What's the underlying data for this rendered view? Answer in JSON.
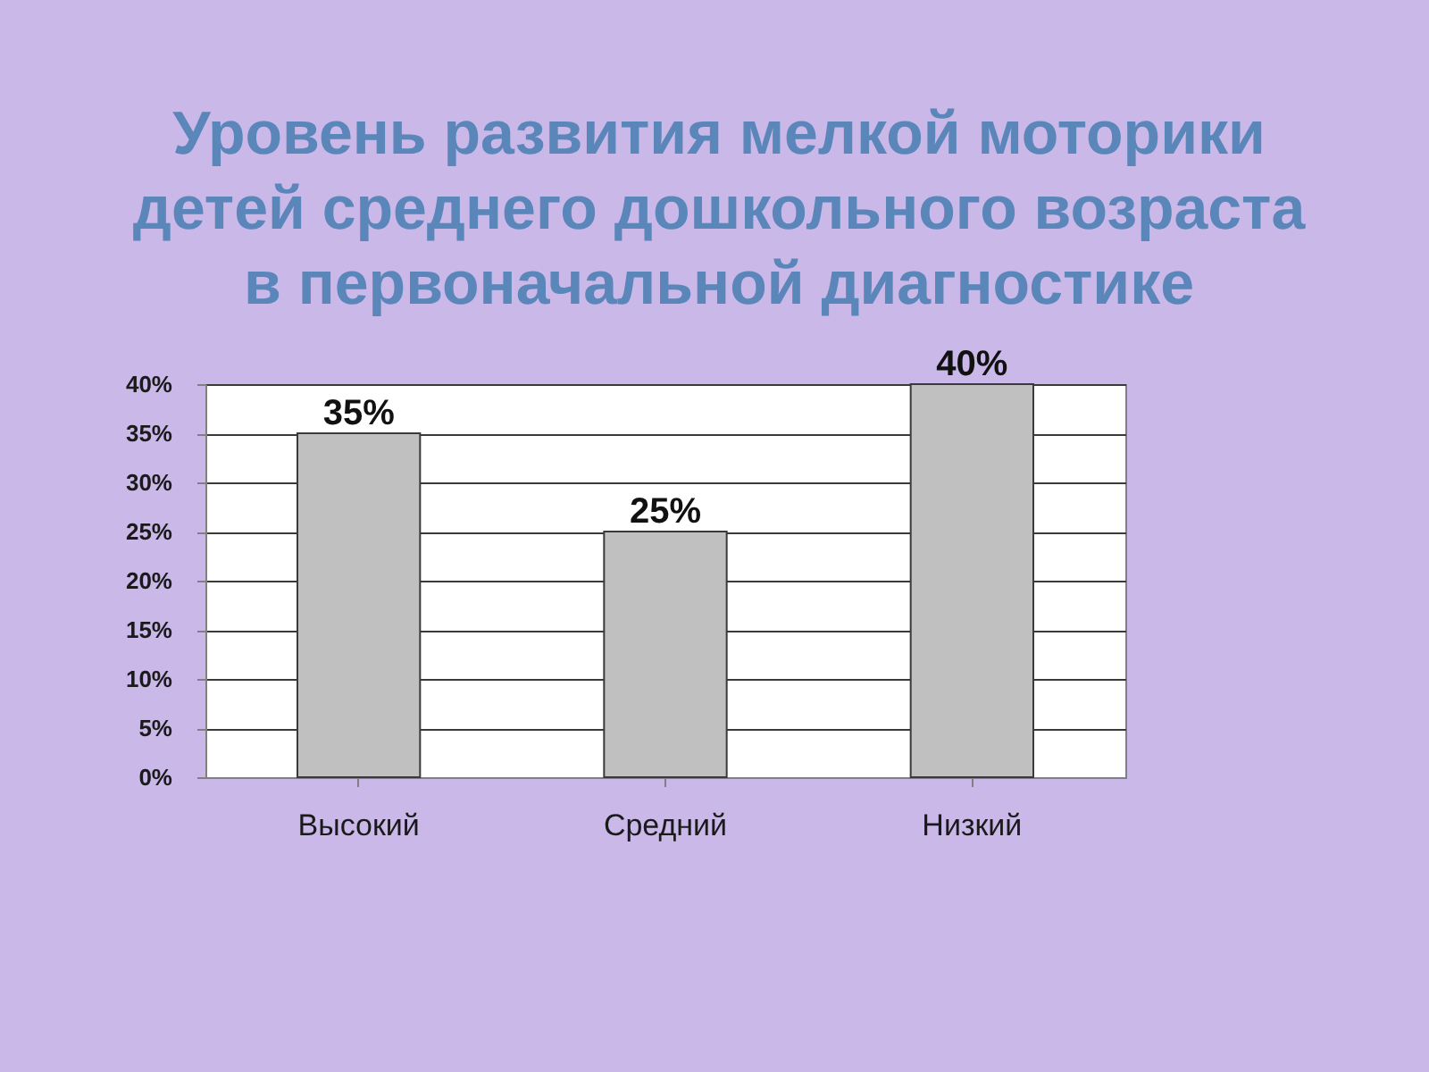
{
  "chart_data": {
    "type": "bar",
    "title": "Уровень развития мелкой моторики детей среднего дошкольного возраста в первоначальной диагностике",
    "categories": [
      "Высокий",
      "Средний",
      "Низкий"
    ],
    "values": [
      35,
      25,
      40
    ],
    "color": "#c0c0c0",
    "value_labels": [
      "35%",
      "25%",
      "40%"
    ],
    "ylim": [
      0,
      40
    ],
    "yticks": [
      {
        "value": 0,
        "label": "0%"
      },
      {
        "value": 5,
        "label": "5%"
      },
      {
        "value": 10,
        "label": "10%"
      },
      {
        "value": 15,
        "label": "15%"
      },
      {
        "value": 20,
        "label": "20%"
      },
      {
        "value": 25,
        "label": "25%"
      },
      {
        "value": 30,
        "label": "30%"
      },
      {
        "value": 35,
        "label": "35%"
      },
      {
        "value": 40,
        "label": "40%"
      }
    ],
    "grid": "y"
  }
}
